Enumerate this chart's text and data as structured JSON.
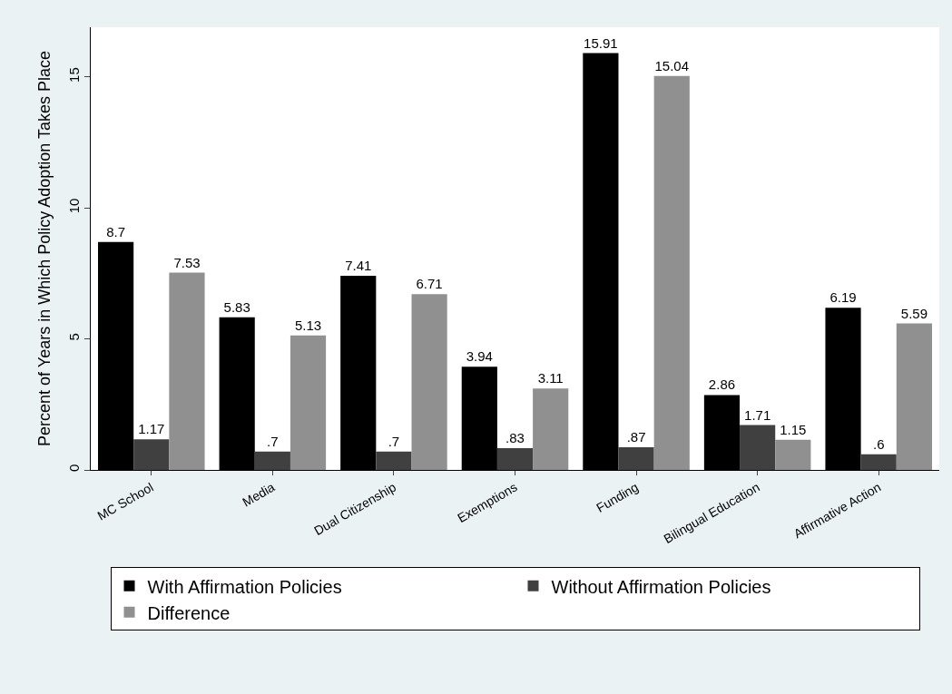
{
  "chart_data": {
    "type": "bar",
    "ylabel": "Percent of Years in Which Policy Adoption Takes Place",
    "categories": [
      "MC School",
      "Media",
      "Dual Citizenship",
      "Exemptions",
      "Funding",
      "Bilingual Education",
      "Affirmative Action"
    ],
    "series": [
      {
        "name": "With Affirmation Policies",
        "color": "#000000",
        "values": [
          8.7,
          5.83,
          7.41,
          3.94,
          15.91,
          2.86,
          6.19
        ],
        "value_labels": [
          "8.7",
          "5.83",
          "7.41",
          "3.94",
          "15.91",
          "2.86",
          "6.19"
        ]
      },
      {
        "name": "Without Affirmation Policies",
        "color": "#404040",
        "values": [
          1.17,
          0.7,
          0.7,
          0.83,
          0.87,
          1.71,
          0.6
        ],
        "value_labels": [
          "1.17",
          ".7",
          ".7",
          ".83",
          ".87",
          "1.71",
          ".6"
        ]
      },
      {
        "name": "Difference",
        "color": "#909090",
        "values": [
          7.53,
          5.13,
          6.71,
          3.11,
          15.04,
          1.15,
          5.59
        ],
        "value_labels": [
          "7.53",
          "5.13",
          "6.71",
          "3.11",
          "15.04",
          "1.15",
          "5.59"
        ]
      }
    ],
    "ylim": [
      0,
      16.9
    ],
    "yticks": [
      0,
      5,
      10,
      15
    ],
    "grid": false,
    "legend": "bottom"
  }
}
